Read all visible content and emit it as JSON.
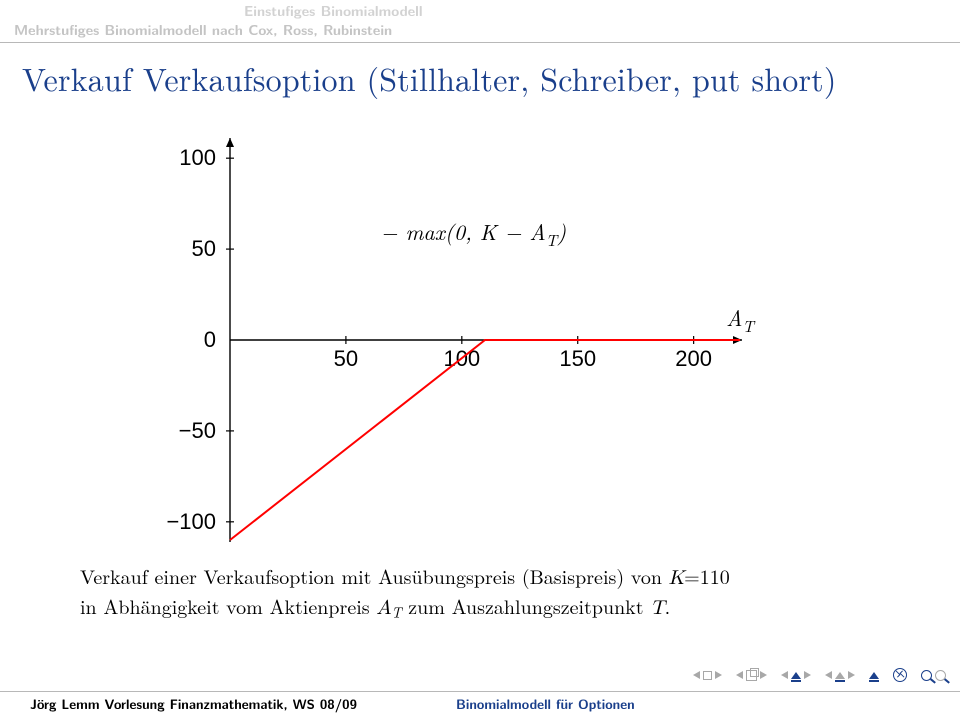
{
  "header": {
    "line1": "Einstufiges Binomialmodell",
    "line2": "Mehrstufiges Binomialmodell nach Cox, Ross, Rubinstein",
    "color_muted": "#c4c4c4"
  },
  "title": {
    "text": "Verkauf Verkaufsoption (Stillhalter, Schreiber, put short)",
    "color": "#1a3f8b",
    "fontsize": 32
  },
  "chart": {
    "type": "line",
    "xlim": [
      0,
      220
    ],
    "ylim": [
      -110,
      110
    ],
    "xticks": [
      50,
      100,
      150,
      200
    ],
    "yticks": [
      -100,
      -50,
      0,
      50,
      100
    ],
    "xtick_labels": [
      "50",
      "100",
      "150",
      "200"
    ],
    "ytick_labels": [
      "−100",
      "−50",
      "0",
      "50",
      "100"
    ],
    "axis_color": "#000000",
    "tick_fontsize": 22,
    "annotation_top": "− max(0, K − A_T)",
    "annotation_right": "A_T",
    "series": {
      "color": "#ff0000",
      "width": 2,
      "points": [
        [
          0,
          -110
        ],
        [
          110,
          0
        ],
        [
          220,
          0
        ]
      ]
    },
    "background_color": "#ffffff"
  },
  "caption": {
    "prefix": "Verkauf einer Verkaufsoption mit Ausübungspreis (Basispreis) von ",
    "k_label": "K",
    "k_value": "=110",
    "line2_prefix": "in Abhängigkeit vom Aktienpreis ",
    "a_label": "A",
    "a_sub": "T",
    "line2_suffix": " zum Auszahlungszeitpunkt ",
    "t_label": "T",
    "period": "."
  },
  "footer": {
    "left": "Jörg Lemm Vorlesung Finanzmathematik, WS 08/09",
    "right": "Binomialmodell für Optionen",
    "right_color": "#1a3f8b"
  }
}
